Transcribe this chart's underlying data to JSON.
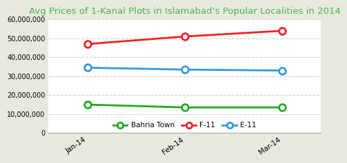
{
  "title": "Avg Prices of 1-Kanal Plots in Islamabad’s Popular Localities in 2014",
  "x_labels": [
    "Jan-14",
    "Feb-14",
    "Mar-14"
  ],
  "series": [
    {
      "name": "Bahria Town",
      "color": "#22AA22",
      "values": [
        15000000,
        13500000,
        13500000
      ]
    },
    {
      "name": "F-11",
      "color": "#EE2222",
      "values": [
        47000000,
        51000000,
        54000000
      ]
    },
    {
      "name": "E-11",
      "color": "#3399DD",
      "values": [
        34500000,
        33500000,
        33000000
      ]
    }
  ],
  "ylim": [
    0,
    60000000
  ],
  "yticks": [
    0,
    10000000,
    20000000,
    30000000,
    40000000,
    50000000,
    60000000
  ],
  "background_color": "#e8e8e0",
  "plot_background": "#ffffff",
  "title_color": "#44BB44",
  "title_fontsize": 9.5,
  "grid_color": "#cccccc",
  "border_color": "#aaaaaa"
}
